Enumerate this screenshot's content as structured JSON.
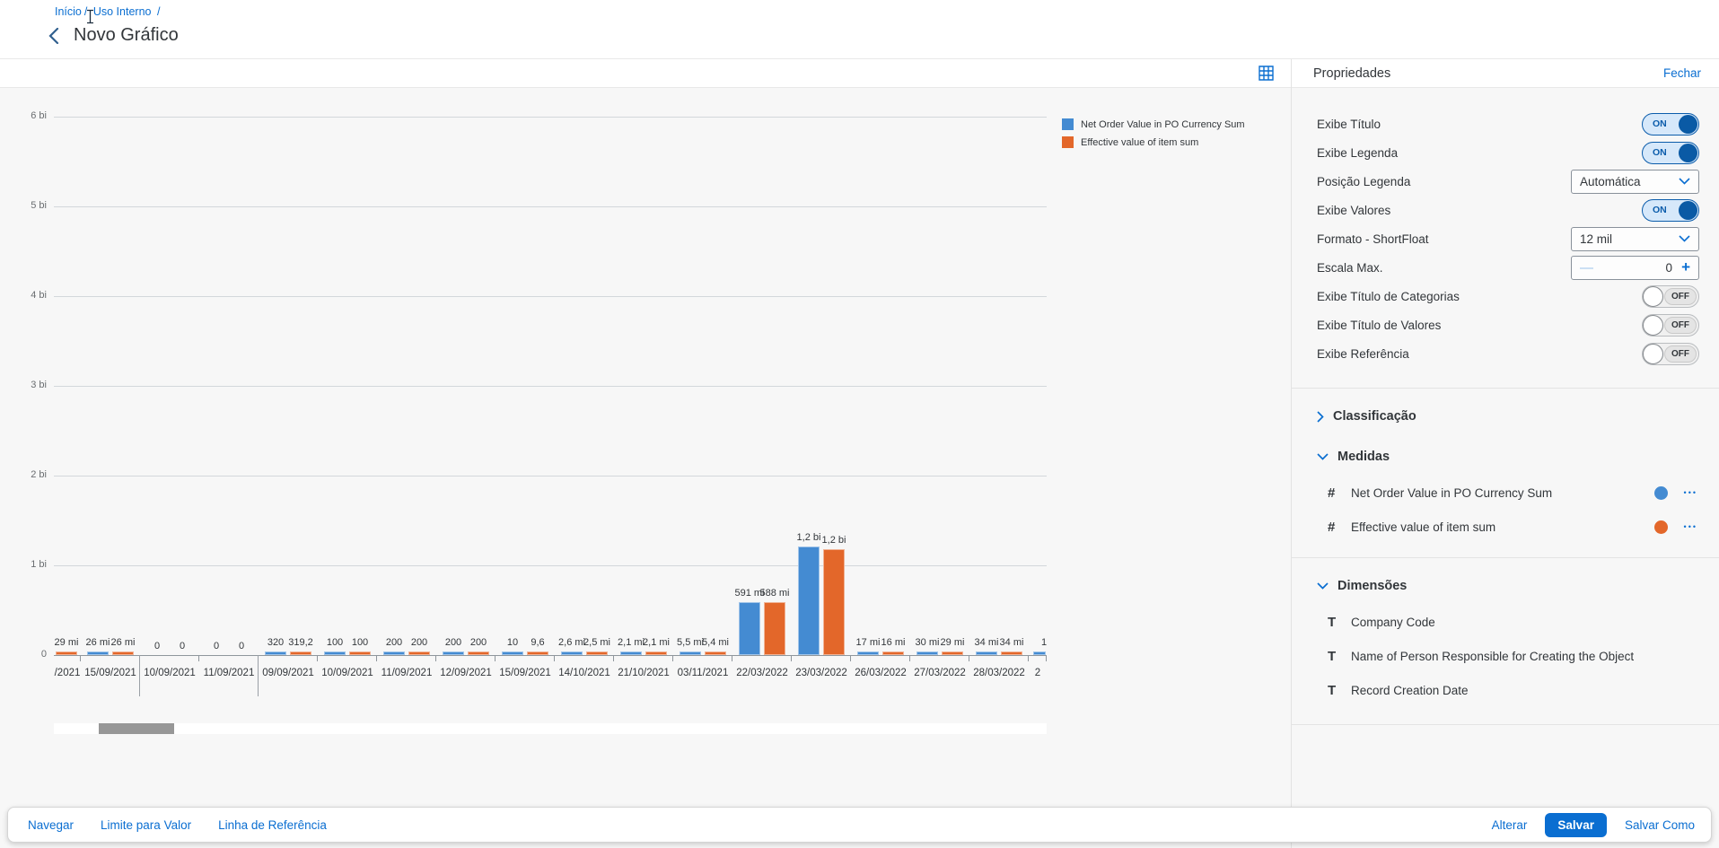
{
  "header": {
    "breadcrumb": [
      "Início",
      "Uso Interno"
    ],
    "breadcrumb_separator": "/",
    "title": "Novo Gráfico"
  },
  "panel": {
    "title": "Propriedades",
    "close_label": "Fechar",
    "rows": [
      {
        "label": "Exibe Título",
        "control": "toggle",
        "state": "ON"
      },
      {
        "label": "Exibe Legenda",
        "control": "toggle",
        "state": "ON"
      },
      {
        "label": "Posição Legenda",
        "control": "select",
        "value": "Automática"
      },
      {
        "label": "Exibe Valores",
        "control": "toggle",
        "state": "ON"
      },
      {
        "label": "Formato - ShortFloat",
        "control": "select",
        "value": "12 mil"
      },
      {
        "label": "Escala Max.",
        "control": "stepper",
        "value": "0",
        "minus": "—",
        "plus": "+"
      },
      {
        "label": "Exibe Título de Categorias",
        "control": "toggle",
        "state": "OFF"
      },
      {
        "label": "Exibe Título de Valores",
        "control": "toggle",
        "state": "OFF"
      },
      {
        "label": "Exibe Referência",
        "control": "toggle",
        "state": "OFF"
      }
    ],
    "sections": [
      {
        "label": "Classificação",
        "expanded": false,
        "items": []
      },
      {
        "label": "Medidas",
        "expanded": true,
        "items": [
          {
            "icon": "#",
            "icon_name": "measure-icon",
            "label": "Net Order Value in PO Currency Sum",
            "color": "#448bd2",
            "menu": "•••"
          },
          {
            "icon": "#",
            "icon_name": "measure-icon",
            "label": "Effective value of item sum",
            "color": "#e3672a",
            "menu": "•••"
          }
        ]
      },
      {
        "label": "Dimensões",
        "expanded": true,
        "items": [
          {
            "icon": "T",
            "icon_name": "dimension-text-icon",
            "label": "Company Code"
          },
          {
            "icon": "T",
            "icon_name": "dimension-text-icon",
            "label": "Name of Person Responsible for Creating the Object"
          },
          {
            "icon": "T",
            "icon_name": "dimension-text-icon",
            "label": "Record Creation Date"
          }
        ]
      }
    ]
  },
  "footer": {
    "left": [
      "Navegar",
      "Limite para Valor",
      "Linha de Referência"
    ],
    "right": {
      "alterar": "Alterar",
      "salvar": "Salvar",
      "salvar_como": "Salvar Como"
    }
  },
  "chart_data": {
    "type": "bar",
    "title": "",
    "legend_position": "top-right",
    "y_axis": {
      "tick_labels": [
        "6 bi",
        "5 bi",
        "4 bi",
        "3 bi",
        "2 bi",
        "1 bi",
        "0"
      ],
      "max": 6000000000,
      "gridlines": true
    },
    "series": [
      {
        "name": "Net Order Value in PO Currency Sum",
        "color": "#448bd2"
      },
      {
        "name": "Effective value of item sum",
        "color": "#e3672a"
      }
    ],
    "categories": [
      {
        "date": "/2021",
        "clip": "left",
        "values": [
          null,
          29000000
        ],
        "value_labels": [
          null,
          "29 mi"
        ]
      },
      {
        "date": "15/09/2021",
        "values": [
          26000000,
          26000000
        ],
        "value_labels": [
          "26 mi",
          "26 mi"
        ],
        "separator_after": true
      },
      {
        "date": "10/09/2021",
        "values": [
          0,
          0
        ],
        "value_labels": [
          "0",
          "0"
        ]
      },
      {
        "date": "11/09/2021",
        "values": [
          0,
          0
        ],
        "value_labels": [
          "0",
          "0"
        ],
        "separator_after": true
      },
      {
        "date": "09/09/2021",
        "values": [
          320,
          319.2
        ],
        "value_labels": [
          "320",
          "319,2"
        ]
      },
      {
        "date": "10/09/2021",
        "values": [
          100,
          100
        ],
        "value_labels": [
          "100",
          "100"
        ]
      },
      {
        "date": "11/09/2021",
        "values": [
          200,
          200
        ],
        "value_labels": [
          "200",
          "200"
        ]
      },
      {
        "date": "12/09/2021",
        "values": [
          200,
          200
        ],
        "value_labels": [
          "200",
          "200"
        ]
      },
      {
        "date": "15/09/2021",
        "values": [
          10,
          9.6
        ],
        "value_labels": [
          "10",
          "9,6"
        ]
      },
      {
        "date": "14/10/2021",
        "values": [
          2600000,
          2500000
        ],
        "value_labels": [
          "2,6 mi",
          "2,5 mi"
        ]
      },
      {
        "date": "21/10/2021",
        "values": [
          2100000,
          2100000
        ],
        "value_labels": [
          "2,1 mi",
          "2,1 mi"
        ]
      },
      {
        "date": "03/11/2021",
        "values": [
          5500000,
          5400000
        ],
        "value_labels": [
          "5,5 mi",
          "5,4 mi"
        ]
      },
      {
        "date": "22/03/2022",
        "values": [
          591000000,
          588000000
        ],
        "value_labels": [
          "591 mi",
          "588 mi"
        ]
      },
      {
        "date": "23/03/2022",
        "values": [
          1210000000,
          1180000000
        ],
        "value_labels": [
          "1,2 bi",
          "1,2 bi"
        ]
      },
      {
        "date": "26/03/2022",
        "values": [
          17000000,
          16000000
        ],
        "value_labels": [
          "17 mi",
          "16 mi"
        ]
      },
      {
        "date": "27/03/2022",
        "values": [
          30000000,
          29000000
        ],
        "value_labels": [
          "30 mi",
          "29 mi"
        ]
      },
      {
        "date": "28/03/2022",
        "values": [
          34000000,
          34000000
        ],
        "value_labels": [
          "34 mi",
          "34 mi"
        ]
      },
      {
        "date": "2",
        "clip": "right",
        "values": [
          20000000,
          null
        ],
        "value_labels": [
          "1",
          null
        ]
      }
    ]
  }
}
